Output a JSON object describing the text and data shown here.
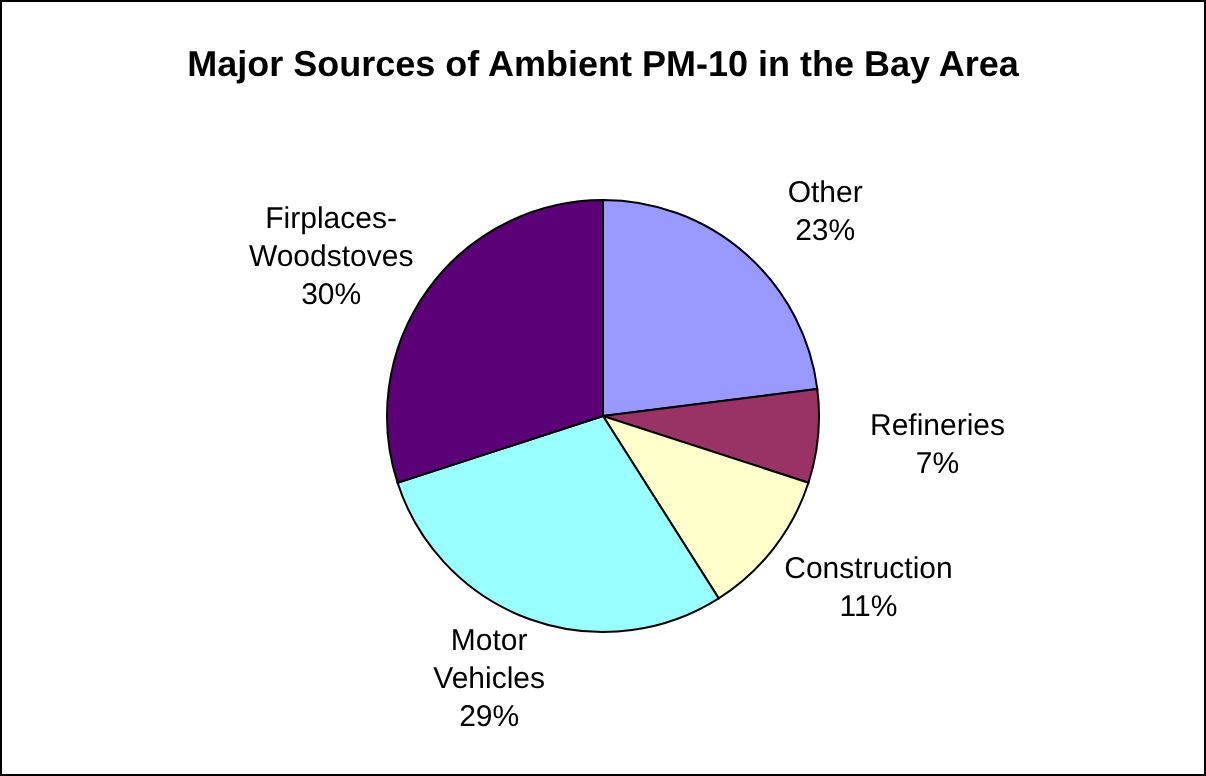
{
  "chart_data": {
    "type": "pie",
    "title": "Major Sources of Ambient PM-10 in the Bay Area",
    "categories": [
      "Other",
      "Refineries",
      "Construction",
      "Motor Vehicles",
      "Firplaces-Woodstoves"
    ],
    "values": [
      23,
      7,
      11,
      29,
      30
    ],
    "value_labels": [
      "23%",
      "7%",
      "11%",
      "29%",
      "30%"
    ],
    "colors": [
      "#9999ff",
      "#993366",
      "#ffffcc",
      "#99ffff",
      "#5c0078"
    ]
  }
}
